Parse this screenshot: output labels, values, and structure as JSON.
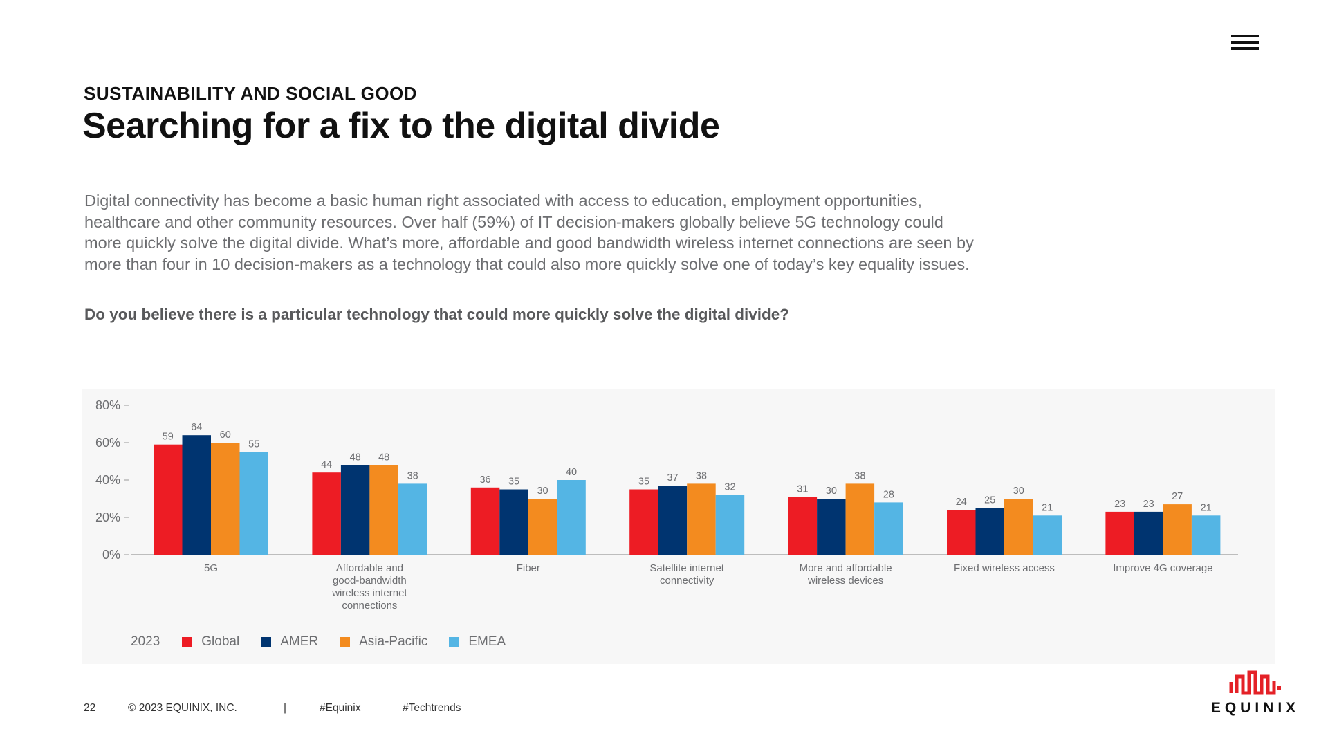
{
  "header": {
    "kicker": "SUSTAINABILITY AND SOCIAL GOOD",
    "title": "Searching for a fix to the digital divide"
  },
  "body": {
    "paragraph": "Digital connectivity has become a basic human right associated with access to education, employment opportunities, healthcare and other community resources. Over half (59%) of IT decision-makers globally believe 5G technology could more quickly solve the digital divide. What’s more, affordable and good bandwidth wireless internet connections are seen by more than four in 10 decision-makers as a technology that could also more quickly solve one of today’s key equality issues.",
    "question": "Do you believe there is a particular technology that could more quickly solve the digital divide?"
  },
  "chart_data": {
    "type": "bar",
    "title": "",
    "xlabel": "",
    "ylabel": "",
    "ylim": [
      0,
      80
    ],
    "yticks": [
      "0%",
      "20%",
      "40%",
      "60%",
      "80%"
    ],
    "categories": [
      [
        "5G"
      ],
      [
        "Affordable and",
        "good-bandwidth",
        "wireless internet",
        "connections"
      ],
      [
        "Fiber"
      ],
      [
        "Satellite internet",
        "connectivity"
      ],
      [
        "More and affordable",
        "wireless devices"
      ],
      [
        "Fixed wireless access"
      ],
      [
        "Improve 4G coverage"
      ]
    ],
    "series": [
      {
        "name": "Global",
        "color": "#ed1c24",
        "values": [
          59,
          44,
          36,
          35,
          31,
          24,
          23
        ]
      },
      {
        "name": "AMER",
        "color": "#003470",
        "values": [
          64,
          48,
          35,
          37,
          30,
          25,
          23
        ]
      },
      {
        "name": "Asia-Pacific",
        "color": "#f38b1f",
        "values": [
          60,
          48,
          30,
          38,
          38,
          30,
          27
        ]
      },
      {
        "name": "EMEA",
        "color": "#54b5e4",
        "values": [
          55,
          38,
          40,
          32,
          28,
          21,
          21
        ]
      }
    ],
    "legend_title": "2023",
    "legend_position": "bottom-left",
    "grid": false
  },
  "footer": {
    "page_number": "22",
    "copyright": "© 2023 EQUINIX, INC.",
    "separator": "|",
    "hashtag1": "#Equinix",
    "hashtag2": "#Techtrends"
  },
  "logo": {
    "text": "EQUINIX",
    "color": "#e42127"
  },
  "icons": {
    "menu": "hamburger-menu-icon"
  }
}
